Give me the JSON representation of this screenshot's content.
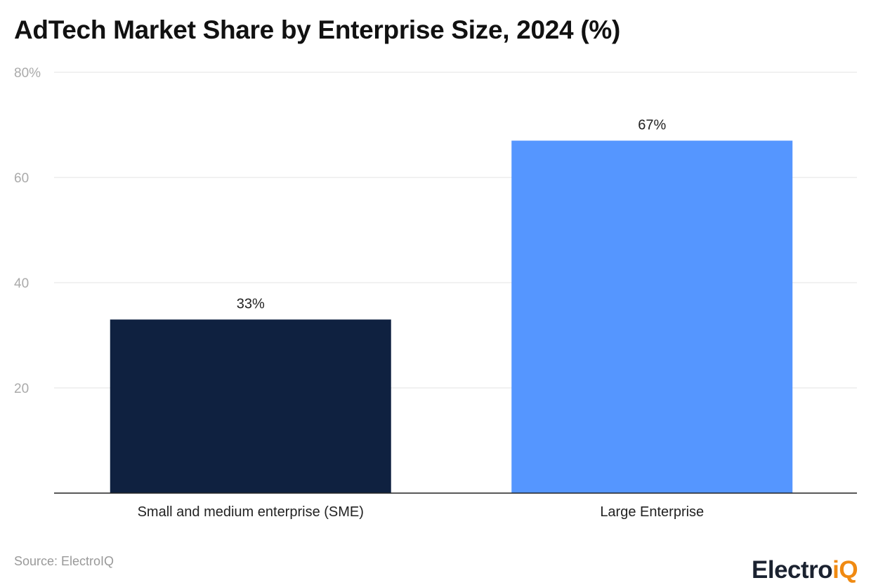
{
  "chart_data": {
    "type": "bar",
    "title": "AdTech Market Share by Enterprise Size, 2024 (%)",
    "categories": [
      "Small and medium enterprise (SME)",
      "Large Enterprise"
    ],
    "values": [
      33,
      67
    ],
    "data_labels": [
      "33%",
      "67%"
    ],
    "ylim": [
      0,
      80
    ],
    "yticks": [
      20,
      40,
      60,
      80
    ],
    "ytick_labels": [
      "20",
      "40",
      "60",
      "80%"
    ],
    "grid": true,
    "colors": [
      "#0f2140",
      "#5596ff"
    ]
  },
  "source": "Source: ElectroIQ",
  "logo": {
    "part1": "Electro",
    "part2": "iQ"
  }
}
